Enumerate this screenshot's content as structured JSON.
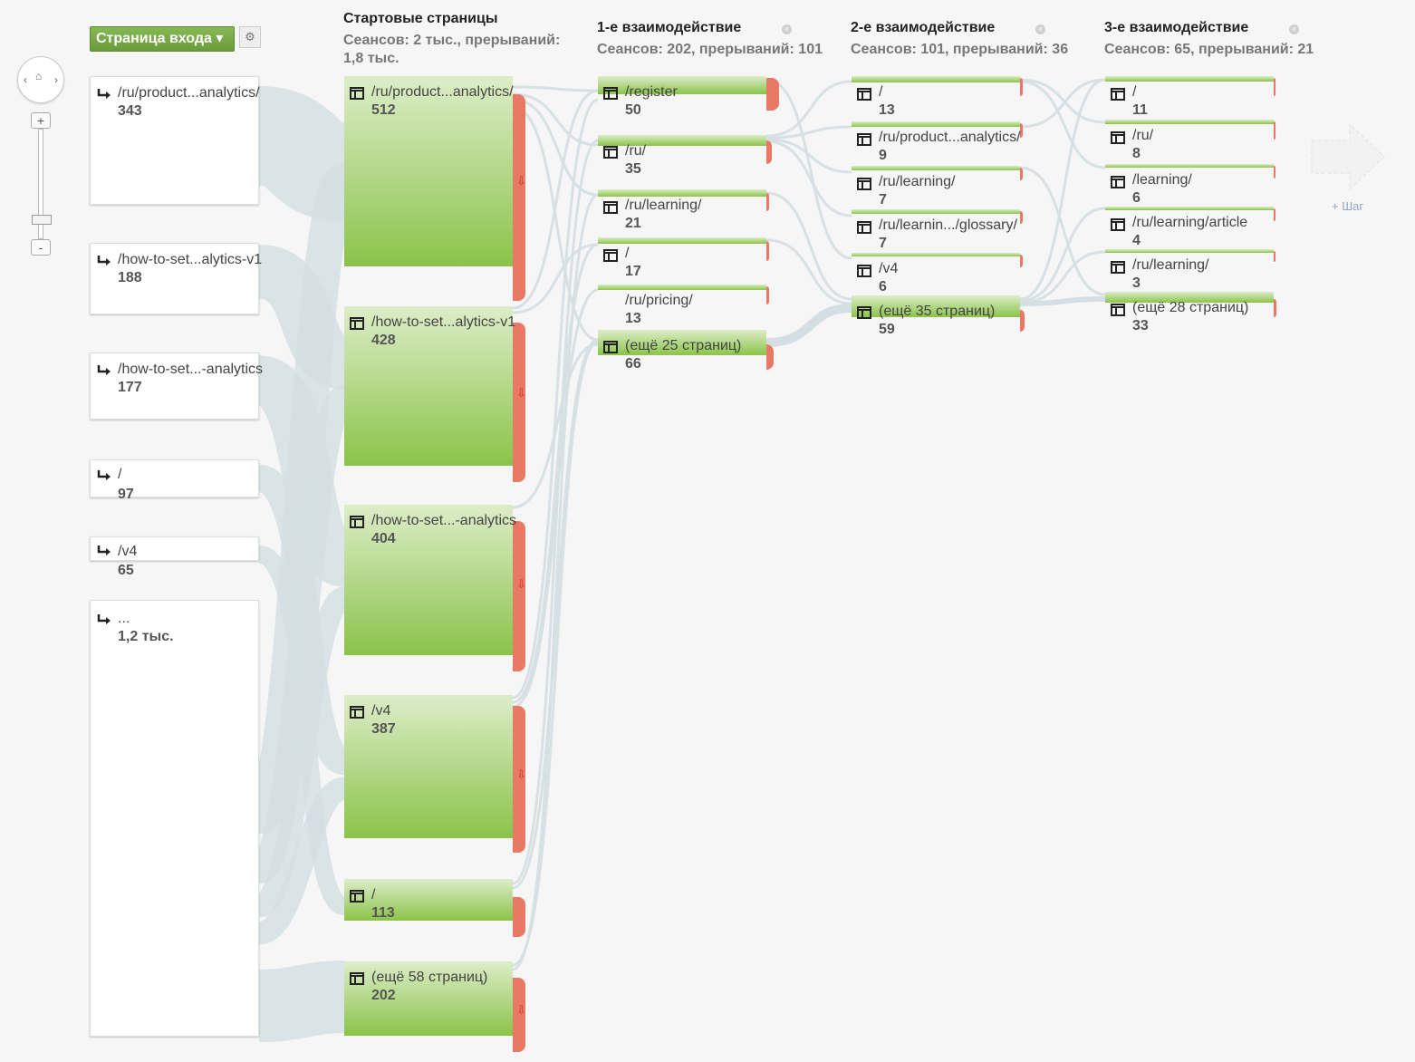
{
  "dimension_button": {
    "label": "Страница входа"
  },
  "columns": [
    {
      "title": "Стартовые страницы",
      "subtitle": "Сеансов: 2 тыс., прерываний:",
      "subtitle2": "1,8 тыс."
    },
    {
      "title": "1-е взаимодействие",
      "subtitle": "Сеансов: 202, прерываний: 101"
    },
    {
      "title": "2-е взаимодействие",
      "subtitle": "Сеансов: 101, прерываний: 36"
    },
    {
      "title": "3-е взаимодействие",
      "subtitle": "Сеансов: 65, прерываний: 21"
    }
  ],
  "entries": [
    {
      "label": "/ru/product...analytics/",
      "count": "343"
    },
    {
      "label": "/how-to-set...alytics-v1",
      "count": "188"
    },
    {
      "label": "/how-to-set...-analytics",
      "count": "177"
    },
    {
      "label": "/",
      "count": "97"
    },
    {
      "label": "/v4",
      "count": "65"
    },
    {
      "label": "...",
      "count": "1,2 тыс."
    }
  ],
  "start_pages": [
    {
      "label": "/ru/product...analytics/",
      "count": "512"
    },
    {
      "label": "/how-to-set...alytics-v1",
      "count": "428"
    },
    {
      "label": "/how-to-set...-analytics",
      "count": "404"
    },
    {
      "label": "/v4",
      "count": "387"
    },
    {
      "label": "/",
      "count": "113"
    },
    {
      "label": "(ещё 58 страниц)",
      "count": "202"
    }
  ],
  "step1": [
    {
      "label": "/register",
      "count": "50"
    },
    {
      "label": "/ru/",
      "count": "35"
    },
    {
      "label": "/ru/learning/",
      "count": "21"
    },
    {
      "label": "/",
      "count": "17"
    },
    {
      "label": "/ru/pricing/",
      "count": "13"
    },
    {
      "label": "(ещё 25 страниц)",
      "count": "66"
    }
  ],
  "step2": [
    {
      "label": "/",
      "count": "13"
    },
    {
      "label": "/ru/product...analytics/",
      "count": "9"
    },
    {
      "label": "/ru/learning/",
      "count": "7"
    },
    {
      "label": "/ru/learnin.../glossary/",
      "count": "7"
    },
    {
      "label": "/v4",
      "count": "6"
    },
    {
      "label": "(ещё 35 страниц)",
      "count": "59"
    }
  ],
  "step3": [
    {
      "label": "/",
      "count": "11"
    },
    {
      "label": "/ru/",
      "count": "8"
    },
    {
      "label": "/learning/",
      "count": "6"
    },
    {
      "label": "/ru/learning/article",
      "count": "4"
    },
    {
      "label": "/ru/learning/",
      "count": "3"
    },
    {
      "label": "(ещё 28 страниц)",
      "count": "33"
    }
  ],
  "add_step": {
    "label": "+ Шаг"
  },
  "colors": {
    "node_green": "#8bc34a",
    "node_light": "#dcedc8",
    "dropoff": "#e87965",
    "flow": "#d5dfe3",
    "button_green": "#6a9c3c"
  },
  "icons": {
    "entry": "entry-arrow-icon",
    "page": "page-icon",
    "dropoff": "dropoff-arrow-icon",
    "settings": "gear-icon",
    "home": "home-icon"
  }
}
